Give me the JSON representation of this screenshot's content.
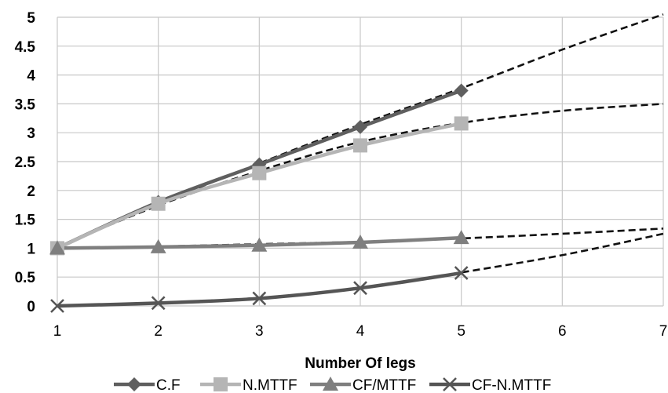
{
  "chart_data": {
    "type": "line",
    "xlabel": "Number Of legs",
    "ylabel": "",
    "xlim": [
      1,
      7
    ],
    "ylim": [
      0,
      5
    ],
    "x_ticks": [
      "1",
      "2",
      "3",
      "4",
      "5",
      "6",
      "7"
    ],
    "y_ticks": [
      "0",
      "0.5",
      "1",
      "1.5",
      "2",
      "2.5",
      "3",
      "3.5",
      "4",
      "4.5",
      "5"
    ],
    "grid": true,
    "legend_position": "bottom",
    "series": [
      {
        "name": "C.F",
        "marker": "diamond",
        "color": "#5f5f5f",
        "x": [
          1,
          2,
          3,
          4,
          5
        ],
        "values": [
          1.0,
          1.8,
          2.45,
          3.1,
          3.73
        ],
        "trend": {
          "x": [
            1,
            2,
            3,
            4,
            5,
            6,
            7
          ],
          "values": [
            1.02,
            1.76,
            2.47,
            3.14,
            3.77,
            4.44,
            5.05
          ]
        }
      },
      {
        "name": "N.MTTF",
        "marker": "square",
        "color": "#b5b5b5",
        "x": [
          1,
          2,
          3,
          4,
          5
        ],
        "values": [
          1.0,
          1.77,
          2.3,
          2.78,
          3.16
        ],
        "trend": {
          "x": [
            1,
            2,
            3,
            4,
            5,
            6,
            7
          ],
          "values": [
            1.02,
            1.74,
            2.34,
            2.84,
            3.17,
            3.38,
            3.5
          ]
        }
      },
      {
        "name": "CF/MTTF",
        "marker": "triangle",
        "color": "#7f7f7f",
        "x": [
          1,
          2,
          3,
          4,
          5
        ],
        "values": [
          1.0,
          1.02,
          1.05,
          1.1,
          1.18
        ],
        "trend": {
          "x": [
            1,
            2,
            3,
            4,
            5,
            6,
            7
          ],
          "values": [
            1.0,
            1.03,
            1.07,
            1.11,
            1.17,
            1.25,
            1.34
          ]
        }
      },
      {
        "name": "CF-N.MTTF",
        "marker": "x",
        "color": "#555555",
        "x": [
          1,
          2,
          3,
          4,
          5
        ],
        "values": [
          0.0,
          0.05,
          0.13,
          0.31,
          0.57
        ],
        "trend": {
          "x": [
            1,
            2,
            3,
            4,
            5,
            6,
            7
          ],
          "values": [
            0.0,
            0.05,
            0.14,
            0.31,
            0.58,
            0.88,
            1.25
          ]
        }
      }
    ]
  }
}
